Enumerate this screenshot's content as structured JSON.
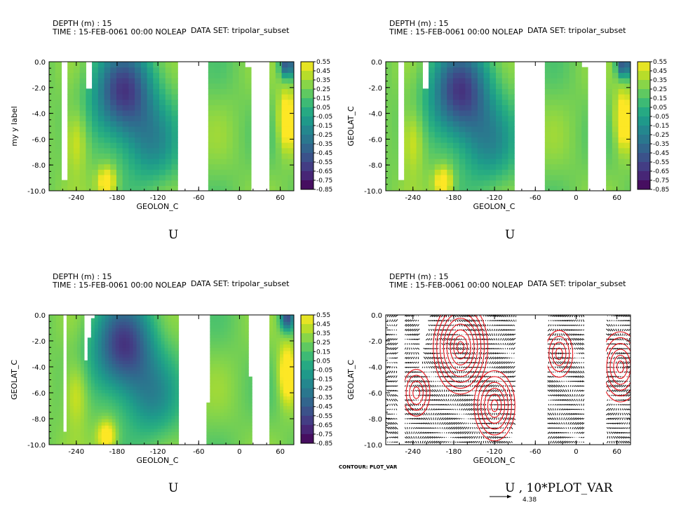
{
  "chart_data": [
    {
      "type": "heatmap",
      "header": {
        "depth": "DEPTH (m) : 15",
        "time": "TIME : 15-FEB-0061 00:00 NOLEAP",
        "dataset": "DATA SET: tripolar_subset"
      },
      "title": "U",
      "xlabel": "GEOLON_C",
      "ylabel": "my y label",
      "xlim": [
        -280,
        80
      ],
      "ylim": [
        -10,
        0
      ],
      "xticks": [
        "-240",
        "-180",
        "-120",
        "-60",
        "0",
        "60"
      ],
      "yticks": [
        "0.0",
        "-2.0",
        "-4.0",
        "-6.0",
        "-8.0",
        "-10.0"
      ],
      "colorbar": [
        "0.55",
        "0.45",
        "0.35",
        "0.25",
        "0.15",
        "0.05",
        "-0.05",
        "-0.15",
        "-0.25",
        "-0.35",
        "-0.45",
        "-0.55",
        "-0.65",
        "-0.75",
        "-0.85"
      ],
      "shading": "blocky"
    },
    {
      "type": "heatmap",
      "header": {
        "depth": "DEPTH (m) : 15",
        "time": "TIME : 15-FEB-0061 00:00 NOLEAP",
        "dataset": "DATA SET: tripolar_subset"
      },
      "title": "U",
      "xlabel": "GEOLON_C",
      "ylabel": "GEOLAT_C",
      "xlim": [
        -280,
        80
      ],
      "ylim": [
        -10,
        0
      ],
      "xticks": [
        "-240",
        "-180",
        "-120",
        "-60",
        "0",
        "60"
      ],
      "yticks": [
        "0.0",
        "-2.0",
        "-4.0",
        "-6.0",
        "-8.0",
        "-10.0"
      ],
      "colorbar": [
        "0.55",
        "0.45",
        "0.35",
        "0.25",
        "0.15",
        "0.05",
        "-0.05",
        "-0.15",
        "-0.25",
        "-0.35",
        "-0.45",
        "-0.55",
        "-0.65",
        "-0.75",
        "-0.85"
      ],
      "shading": "blocky"
    },
    {
      "type": "heatmap",
      "header": {
        "depth": "DEPTH (m) : 15",
        "time": "TIME : 15-FEB-0061 00:00 NOLEAP",
        "dataset": "DATA SET: tripolar_subset"
      },
      "title": "U",
      "xlabel": "GEOLON_C",
      "ylabel": "GEOLAT_C",
      "xlim": [
        -280,
        80
      ],
      "ylim": [
        -10,
        0
      ],
      "xticks": [
        "-240",
        "-180",
        "-120",
        "-60",
        "0",
        "60"
      ],
      "yticks": [
        "0.0",
        "-2.0",
        "-4.0",
        "-6.0",
        "-8.0",
        "-10.0"
      ],
      "colorbar": [
        "0.55",
        "0.45",
        "0.35",
        "0.25",
        "0.15",
        "0.05",
        "-0.05",
        "-0.15",
        "-0.25",
        "-0.35",
        "-0.45",
        "-0.55",
        "-0.65",
        "-0.75",
        "-0.85"
      ],
      "shading": "smooth"
    },
    {
      "type": "contour",
      "header": {
        "depth": "DEPTH (m) : 15",
        "time": "TIME : 15-FEB-0061 00:00 NOLEAP",
        "dataset": "DATA SET: tripolar_subset"
      },
      "title": "U    , 10*PLOT_VAR",
      "xlabel": "GEOLON_C",
      "ylabel": "GEOLAT_C",
      "xlim": [
        -280,
        80
      ],
      "ylim": [
        -10,
        0
      ],
      "xticks": [
        "-240",
        "-180",
        "-120",
        "-60",
        "0",
        "60"
      ],
      "yticks": [
        "0.0",
        "-2.0",
        "-4.0",
        "-6.0",
        "-8.0",
        "-10.0"
      ],
      "contour_label": "CONTOUR: PLOT_VAR",
      "vector_ref": "4.38",
      "contour_color": "#e8141c"
    }
  ],
  "land_bands_lon": [
    [
      -258,
      -252
    ],
    [
      -225,
      -213
    ],
    [
      -88,
      -38
    ],
    [
      10,
      45
    ]
  ],
  "viridis": [
    "#440154",
    "#482173",
    "#433e85",
    "#38598c",
    "#2d708e",
    "#25858e",
    "#1e9b8a",
    "#2ab07f",
    "#52c569",
    "#86d549",
    "#c2df23",
    "#fde725"
  ]
}
